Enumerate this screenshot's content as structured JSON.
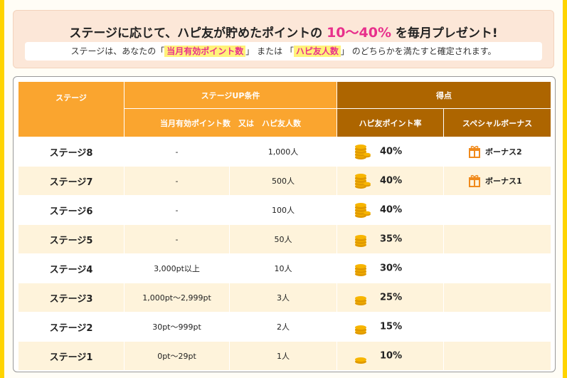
{
  "header": {
    "headline_before": "ステージに応じて、ハピ友が貯めたポイントの ",
    "headline_pct": "10〜40%",
    "headline_after": " を毎月プレゼント!",
    "sub_before": "ステージは、あなたの「",
    "sub_hl1": "当月有効ポイント数",
    "sub_mid": "」 または 「",
    "sub_hl2": "ハピ友人数",
    "sub_after": "」 のどちらかを満たすと確定されます。"
  },
  "table": {
    "col_stage": "ステージ",
    "col_condition": "ステージUP条件",
    "col_score": "得点",
    "sub_condition": "当月有効ポイント数　又は　ハピ友人数",
    "sub_rate": "ハピ友ポイント率",
    "sub_bonus": "スペシャルボーナス",
    "rows": [
      {
        "stage": "ステージ8",
        "points": "-",
        "friends": "1,000人",
        "rate": "40%",
        "coins": 4,
        "bonus": "ボーナス2"
      },
      {
        "stage": "ステージ7",
        "points": "-",
        "friends": "500人",
        "rate": "40%",
        "coins": 4,
        "bonus": "ボーナス1"
      },
      {
        "stage": "ステージ6",
        "points": "-",
        "friends": "100人",
        "rate": "40%",
        "coins": 4,
        "bonus": ""
      },
      {
        "stage": "ステージ5",
        "points": "-",
        "friends": "50人",
        "rate": "35%",
        "coins": 3,
        "bonus": ""
      },
      {
        "stage": "ステージ4",
        "points": "3,000pt以上",
        "friends": "10人",
        "rate": "30%",
        "coins": 3,
        "bonus": ""
      },
      {
        "stage": "ステージ3",
        "points": "1,000pt〜2,999pt",
        "friends": "3人",
        "rate": "25%",
        "coins": 2,
        "bonus": ""
      },
      {
        "stage": "ステージ2",
        "points": "30pt〜999pt",
        "friends": "2人",
        "rate": "15%",
        "coins": 2,
        "bonus": ""
      },
      {
        "stage": "ステージ1",
        "points": "0pt〜29pt",
        "friends": "1人",
        "rate": "10%",
        "coins": 1,
        "bonus": ""
      }
    ]
  },
  "colors": {
    "frame": "#FFD400",
    "header_orange": "#FAA52F",
    "header_brown": "#AD6500",
    "row_alt": "#FEF3DB",
    "highlight_pink": "#E8308C",
    "coin": "#F7B500",
    "gift": "#F08A1C"
  },
  "icons": {
    "rate": "coin-stack-icon",
    "bonus": "gift-icon"
  }
}
